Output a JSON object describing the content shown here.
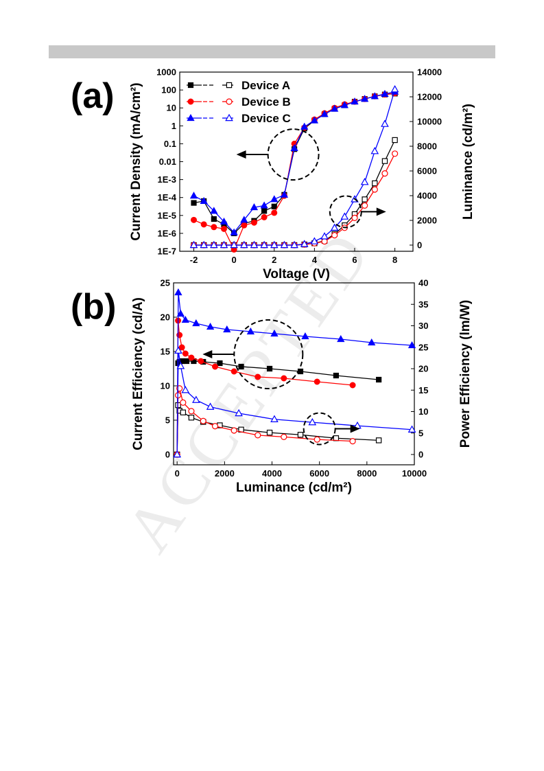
{
  "page": {
    "watermark": "ACCEPTED"
  },
  "chart_data": [
    {
      "panel_label": "(a)",
      "type": "line",
      "xlabel": "Voltage (V)",
      "ylabel_left": "Current Density (mA/cm²)",
      "ylabel_right": "Luminance (cd/m²)",
      "x_ticks": [
        "-2",
        "0",
        "2",
        "4",
        "6",
        "8"
      ],
      "y_left_ticks": [
        "1E-7",
        "1E-6",
        "1E-5",
        "1E-4",
        "1E-3",
        "0.01",
        "0.1",
        "1",
        "10",
        "100",
        "1000"
      ],
      "y_right_ticks": [
        "0",
        "2000",
        "4000",
        "6000",
        "8000",
        "10000",
        "12000",
        "14000"
      ],
      "xlim": [
        -2.7,
        8.9
      ],
      "ylim_left_log10": [
        -7,
        3
      ],
      "ylim_right": [
        -500,
        14000
      ],
      "legend": {
        "placement": "top-left",
        "entries": [
          "Device A",
          "Device B",
          "Device C"
        ]
      },
      "colors": {
        "Device A": "#000000",
        "Device B": "#ff0000",
        "Device C": "#0000ff"
      },
      "annotations": [
        {
          "text": "circle-left-arrow",
          "note": "current density curves, left axis",
          "x": 2.95,
          "y_log10": -1.6
        },
        {
          "text": "circle-right-arrow",
          "note": "luminance curves, right axis",
          "x": 5.55,
          "y_right": 2700
        }
      ],
      "x": [
        -2,
        -1.5,
        -1,
        -0.5,
        0,
        0.5,
        1,
        1.5,
        2,
        2.5,
        3,
        3.5,
        4,
        4.5,
        5,
        5.5,
        6,
        6.5,
        7,
        7.5,
        8
      ],
      "series": [
        {
          "name": "Device A",
          "axis": "left",
          "log10_values": [
            -4.3,
            -4.2,
            -5.2,
            -5.5,
            -6.0,
            -5.45,
            -5.3,
            -4.75,
            -4.5,
            -3.85,
            -1.3,
            -0.15,
            0.3,
            0.65,
            0.95,
            1.15,
            1.35,
            1.5,
            1.65,
            1.75,
            1.8
          ]
        },
        {
          "name": "Device B",
          "axis": "left",
          "log10_values": [
            -5.25,
            -5.5,
            -5.65,
            -5.75,
            -6.9,
            -5.55,
            -5.4,
            -5.1,
            -4.85,
            -3.9,
            -1.0,
            -0.1,
            0.35,
            0.7,
            1.0,
            1.2,
            1.35,
            1.5,
            1.65,
            1.75,
            1.82
          ]
        },
        {
          "name": "Device C",
          "axis": "left",
          "log10_values": [
            -3.9,
            -4.2,
            -4.75,
            -5.35,
            -5.95,
            -5.25,
            -4.55,
            -4.45,
            -4.1,
            -3.85,
            -1.25,
            -0.05,
            0.3,
            0.65,
            0.95,
            1.15,
            1.35,
            1.5,
            1.65,
            1.78,
            1.9
          ]
        },
        {
          "name": "Device A",
          "axis": "right",
          "values": [
            0,
            0,
            0,
            0,
            0,
            0,
            0,
            0,
            0,
            0,
            0,
            50,
            150,
            350,
            900,
            1600,
            2500,
            3700,
            5000,
            6800,
            8500
          ]
        },
        {
          "name": "Device B",
          "axis": "right",
          "values": [
            0,
            0,
            0,
            0,
            0,
            0,
            0,
            0,
            0,
            0,
            0,
            50,
            150,
            300,
            800,
            1400,
            2200,
            3200,
            4500,
            5800,
            7400
          ]
        },
        {
          "name": "Device C",
          "axis": "right",
          "values": [
            0,
            0,
            0,
            0,
            0,
            0,
            0,
            0,
            0,
            0,
            0,
            80,
            300,
            700,
            1400,
            2300,
            3700,
            5100,
            7600,
            9800,
            12600
          ]
        }
      ]
    },
    {
      "panel_label": "(b)",
      "type": "line",
      "xlabel": "Luminance (cd/m²)",
      "ylabel_left": "Current Efficiency (cd/A)",
      "ylabel_right": "Power Efficiency (lm/W)",
      "x_ticks": [
        "0",
        "2000",
        "4000",
        "6000",
        "8000",
        "10000"
      ],
      "y_left_ticks": [
        "0",
        "5",
        "10",
        "15",
        "20",
        "25"
      ],
      "y_right_ticks": [
        "0",
        "5",
        "10",
        "15",
        "20",
        "25",
        "30",
        "35",
        "40"
      ],
      "xlim": [
        -150,
        10000
      ],
      "ylim_left": [
        -1.5,
        25
      ],
      "ylim_right": [
        -2.4,
        40
      ],
      "colors": {
        "Device A": "#000000",
        "Device B": "#ff0000",
        "Device C": "#0000ff"
      },
      "annotations": [
        {
          "text": "circle-left-arrow",
          "note": "current efficiency curves, left axis",
          "x": 3850,
          "y": 14.6
        },
        {
          "text": "circle-right-arrow",
          "note": "power efficiency curves, right axis",
          "x": 6000,
          "y_right": 6
        }
      ],
      "series": [
        {
          "name": "Device A",
          "axis": "left",
          "x": [
            0,
            40,
            100,
            200,
            400,
            700,
            1100,
            1800,
            2700,
            3900,
            5200,
            6700,
            8500
          ],
          "values": [
            0,
            13.3,
            13.5,
            13.6,
            13.6,
            13.6,
            13.5,
            13.3,
            12.8,
            12.5,
            12.1,
            11.5,
            10.9
          ]
        },
        {
          "name": "Device B",
          "axis": "left",
          "x": [
            0,
            40,
            100,
            200,
            350,
            600,
            1000,
            1600,
            2400,
            3400,
            4500,
            5900,
            7400
          ],
          "values": [
            0,
            19.5,
            17.4,
            15.6,
            14.7,
            14.1,
            13.6,
            12.8,
            12.1,
            11.3,
            11.1,
            10.6,
            10.1
          ]
        },
        {
          "name": "Device C",
          "axis": "left",
          "x": [
            0,
            50,
            150,
            350,
            800,
            1400,
            2100,
            3100,
            4100,
            5400,
            6900,
            8200,
            9900
          ],
          "values": [
            0,
            23.6,
            20.5,
            19.6,
            19.1,
            18.6,
            18.2,
            17.9,
            17.6,
            17.2,
            16.8,
            16.3,
            15.9
          ]
        },
        {
          "name": "Device A",
          "axis": "right",
          "x": [
            0,
            40,
            100,
            250,
            600,
            1100,
            1800,
            2700,
            3900,
            5200,
            6700,
            8500
          ],
          "values": [
            0,
            11.5,
            10.2,
            9.8,
            8.6,
            7.6,
            6.8,
            5.8,
            5.1,
            4.6,
            3.8,
            3.3
          ]
        },
        {
          "name": "Device B",
          "axis": "right",
          "x": [
            0,
            40,
            100,
            250,
            600,
            1100,
            1600,
            2400,
            3400,
            4500,
            5900,
            7400
          ],
          "values": [
            0,
            13.8,
            15.4,
            12.1,
            10.1,
            7.8,
            6.6,
            5.6,
            4.5,
            4.1,
            3.5,
            3.1
          ]
        },
        {
          "name": "Device C",
          "axis": "right",
          "x": [
            0,
            50,
            150,
            350,
            800,
            1400,
            2600,
            4100,
            5700,
            7600,
            9900
          ],
          "values": [
            0,
            24.2,
            20.6,
            15.0,
            12.7,
            11.1,
            9.6,
            8.2,
            7.5,
            6.7,
            5.8
          ]
        }
      ]
    }
  ]
}
